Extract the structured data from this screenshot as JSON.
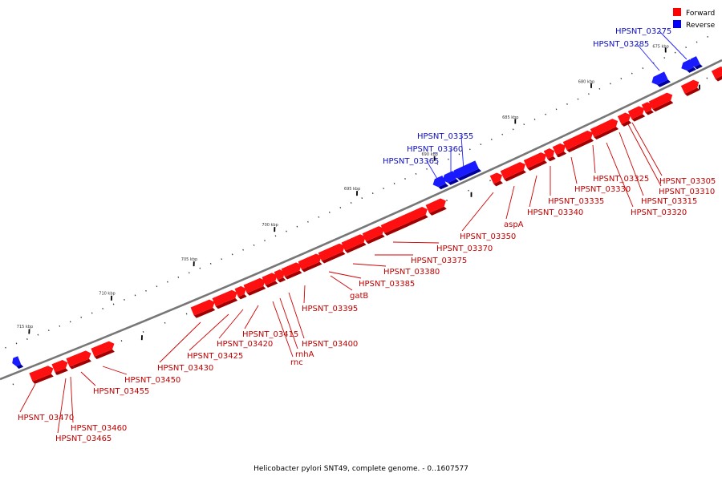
{
  "legend": {
    "forward": {
      "label": "Forward",
      "color": "#ff0000"
    },
    "reverse": {
      "label": "Reverse",
      "color": "#0000ff"
    }
  },
  "caption": "Helicobacter pylori SNT49, complete genome. - 0..1607577",
  "colors": {
    "forward_fill": "#ff1010",
    "forward_dark": "#a00000",
    "forward_line": "#d00000",
    "forward_label": "#c00000",
    "reverse_fill": "#1a1aff",
    "reverse_dark": "#00009a",
    "reverse_line": "#2020ff",
    "reverse_label": "#1010c0",
    "backbone": "#777777",
    "tick": "#000000"
  },
  "scale": {
    "unit": "kbp",
    "major_ticks": [
      "675 kbp",
      "680 kbp",
      "685 kbp",
      "690 kbp",
      "695 kbp",
      "700 kbp",
      "705 kbp",
      "710 kbp",
      "715 kbp"
    ]
  },
  "forward_genes": [
    "HPSNT_03305",
    "HPSNT_03310",
    "HPSNT_03315",
    "HPSNT_03320",
    "HPSNT_03325",
    "HPSNT_03330",
    "HPSNT_03335",
    "HPSNT_03340",
    "aspA",
    "HPSNT_03350",
    "HPSNT_03370",
    "HPSNT_03375",
    "HPSNT_03380",
    "HPSNT_03385",
    "gatB",
    "HPSNT_03395",
    "HPSNT_03400",
    "rnhA",
    "rnc",
    "HPSNT_03415",
    "HPSNT_03420",
    "HPSNT_03425",
    "HPSNT_03430",
    "HPSNT_03450",
    "HPSNT_03455",
    "HPSNT_03460",
    "HPSNT_03465",
    "HPSNT_03470"
  ],
  "reverse_genes": [
    "HPSNT_03275",
    "HPSNT_03285",
    "HPSNT_03355",
    "HPSNT_03360",
    "HPSNT_03365"
  ]
}
